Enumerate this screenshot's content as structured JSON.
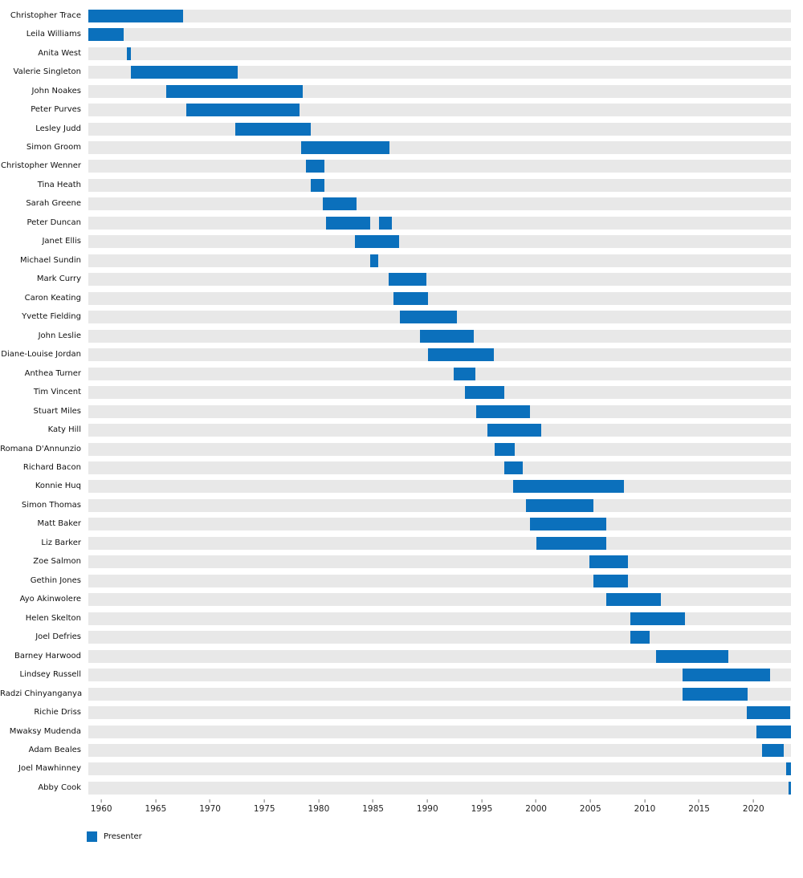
{
  "chart_data": {
    "type": "gantt",
    "title": "",
    "xlabel": "",
    "ylabel": "",
    "grid": false,
    "legend_position": "bottom-left",
    "bar_color": "#0b70bc",
    "track_color": "#e8e8e8",
    "x_domain": [
      1958.8,
      2023.45
    ],
    "x_ticks": [
      "1960",
      "1965",
      "1970",
      "1975",
      "1980",
      "1985",
      "1990",
      "1995",
      "2000",
      "2005",
      "2010",
      "2015",
      "2020"
    ],
    "legend": [
      {
        "label": "Presenter",
        "color": "#0b70bc"
      }
    ],
    "rows": [
      {
        "name": "Christopher Trace",
        "intervals": [
          [
            1958.8,
            1967.55
          ]
        ]
      },
      {
        "name": "Leila Williams",
        "intervals": [
          [
            1958.8,
            1962.05
          ]
        ]
      },
      {
        "name": "Anita West",
        "intervals": [
          [
            1962.35,
            1962.75
          ]
        ]
      },
      {
        "name": "Valerie Singleton",
        "intervals": [
          [
            1962.75,
            1972.55
          ]
        ]
      },
      {
        "name": "John Noakes",
        "intervals": [
          [
            1965.95,
            1978.5
          ]
        ]
      },
      {
        "name": "Peter Purves",
        "intervals": [
          [
            1967.85,
            1978.25
          ]
        ]
      },
      {
        "name": "Lesley Judd",
        "intervals": [
          [
            1972.35,
            1979.3
          ]
        ]
      },
      {
        "name": "Simon Groom",
        "intervals": [
          [
            1978.35,
            1986.5
          ]
        ]
      },
      {
        "name": "Christopher Wenner",
        "intervals": [
          [
            1978.8,
            1980.55
          ]
        ]
      },
      {
        "name": "Tina Heath",
        "intervals": [
          [
            1979.3,
            1980.55
          ]
        ]
      },
      {
        "name": "Sarah Greene",
        "intervals": [
          [
            1980.35,
            1983.5
          ]
        ]
      },
      {
        "name": "Peter Duncan",
        "intervals": [
          [
            1980.7,
            1984.7
          ],
          [
            1985.55,
            1986.7
          ]
        ]
      },
      {
        "name": "Janet Ellis",
        "intervals": [
          [
            1983.3,
            1987.4
          ]
        ]
      },
      {
        "name": "Michael Sundin",
        "intervals": [
          [
            1984.7,
            1985.5
          ]
        ]
      },
      {
        "name": "Mark Curry",
        "intervals": [
          [
            1986.45,
            1989.9
          ]
        ]
      },
      {
        "name": "Caron Keating",
        "intervals": [
          [
            1986.85,
            1990.05
          ]
        ]
      },
      {
        "name": "Yvette Fielding",
        "intervals": [
          [
            1987.45,
            1992.75
          ]
        ]
      },
      {
        "name": "John Leslie",
        "intervals": [
          [
            1989.3,
            1994.25
          ]
        ]
      },
      {
        "name": "Diane-Louise Jordan",
        "intervals": [
          [
            1990.05,
            1996.15
          ]
        ]
      },
      {
        "name": "Anthea Turner",
        "intervals": [
          [
            1992.45,
            1994.45
          ]
        ]
      },
      {
        "name": "Tim Vincent",
        "intervals": [
          [
            1993.45,
            1997.05
          ]
        ]
      },
      {
        "name": "Stuart Miles",
        "intervals": [
          [
            1994.45,
            1999.45
          ]
        ]
      },
      {
        "name": "Katy Hill",
        "intervals": [
          [
            1995.5,
            2000.45
          ]
        ]
      },
      {
        "name": "Romana D'Annunzio",
        "intervals": [
          [
            1996.15,
            1998.05
          ]
        ]
      },
      {
        "name": "Richard Bacon",
        "intervals": [
          [
            1997.1,
            1998.8
          ]
        ]
      },
      {
        "name": "Konnie Huq",
        "intervals": [
          [
            1997.9,
            2008.05
          ]
        ]
      },
      {
        "name": "Simon Thomas",
        "intervals": [
          [
            1999.05,
            2005.3
          ]
        ]
      },
      {
        "name": "Matt Baker",
        "intervals": [
          [
            1999.45,
            2006.45
          ]
        ]
      },
      {
        "name": "Liz Barker",
        "intervals": [
          [
            2000.05,
            2006.45
          ]
        ]
      },
      {
        "name": "Zoe Salmon",
        "intervals": [
          [
            2004.9,
            2008.45
          ]
        ]
      },
      {
        "name": "Gethin Jones",
        "intervals": [
          [
            2005.3,
            2008.45
          ]
        ]
      },
      {
        "name": "Ayo Akinwolere",
        "intervals": [
          [
            2006.45,
            2011.45
          ]
        ]
      },
      {
        "name": "Helen Skelton",
        "intervals": [
          [
            2008.7,
            2013.7
          ]
        ]
      },
      {
        "name": "Joel Defries",
        "intervals": [
          [
            2008.7,
            2010.45
          ]
        ]
      },
      {
        "name": "Barney Harwood",
        "intervals": [
          [
            2011.05,
            2017.7
          ]
        ]
      },
      {
        "name": "Lindsey Russell",
        "intervals": [
          [
            2013.5,
            2021.5
          ]
        ]
      },
      {
        "name": "Radzi Chinyanganya",
        "intervals": [
          [
            2013.5,
            2019.45
          ]
        ]
      },
      {
        "name": "Richie Driss",
        "intervals": [
          [
            2019.35,
            2023.35
          ]
        ]
      },
      {
        "name": "Mwaksy Mudenda",
        "intervals": [
          [
            2020.25,
            2023.45
          ]
        ]
      },
      {
        "name": "Adam Beales",
        "intervals": [
          [
            2020.8,
            2022.8
          ]
        ]
      },
      {
        "name": "Joel Mawhinney",
        "intervals": [
          [
            2023.0,
            2023.45
          ]
        ]
      },
      {
        "name": "Abby Cook",
        "intervals": [
          [
            2023.2,
            2023.45
          ]
        ]
      }
    ]
  }
}
